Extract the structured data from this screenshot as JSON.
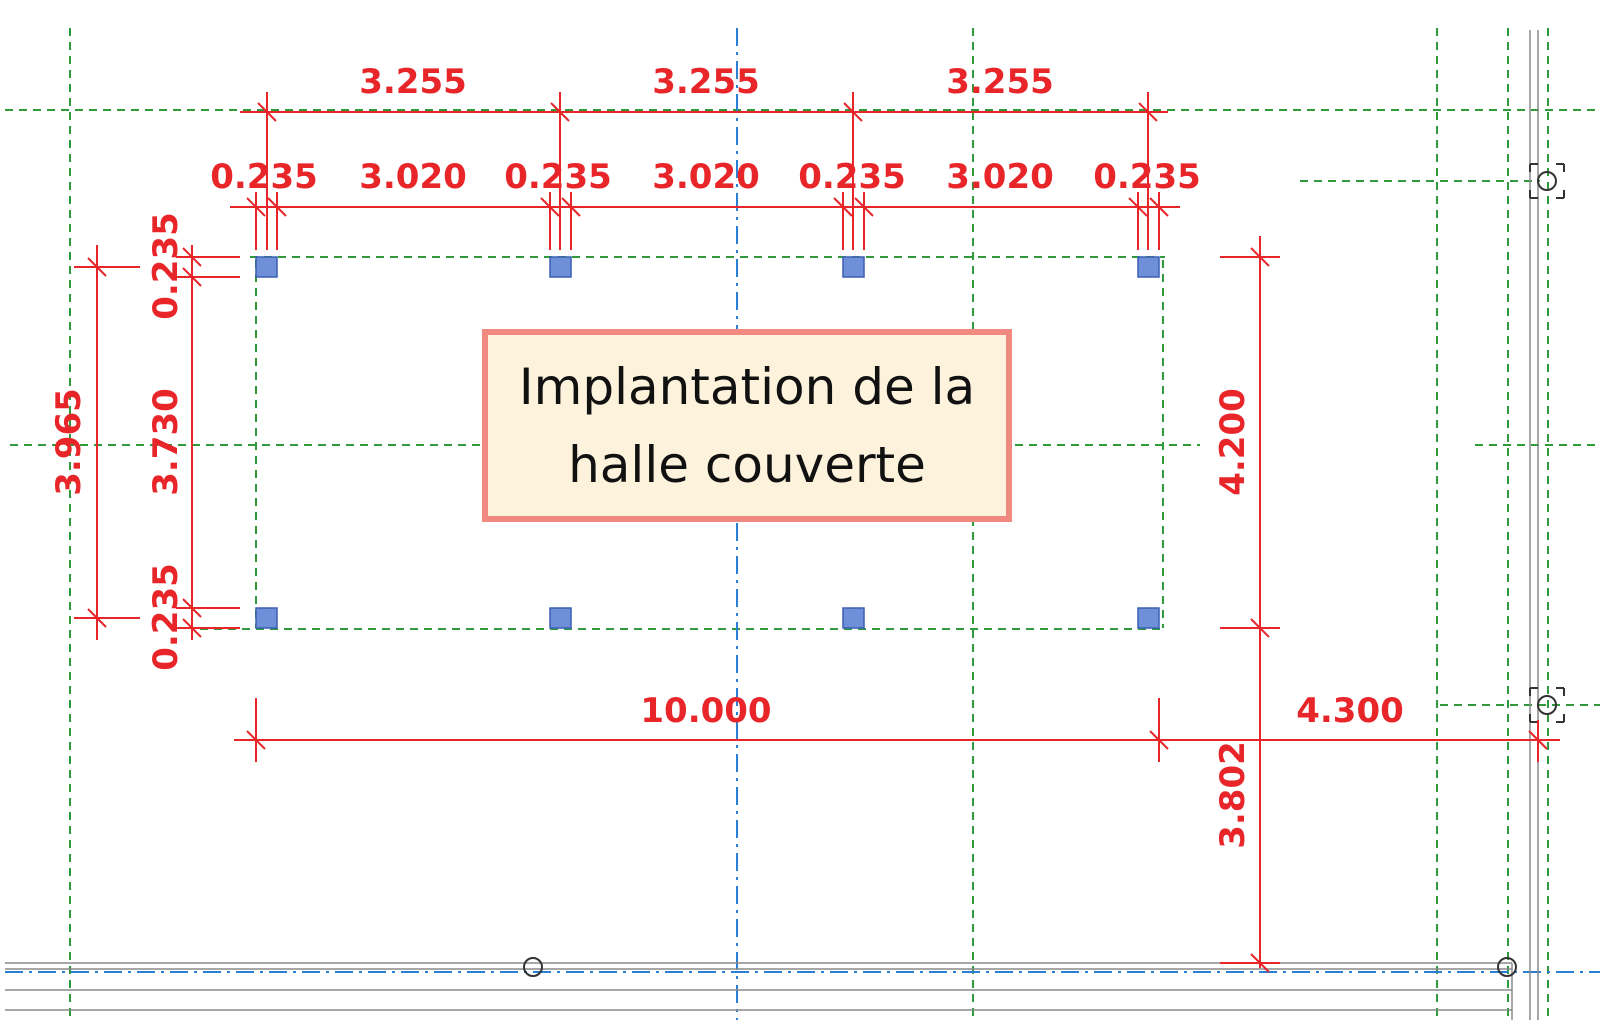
{
  "title": {
    "line1": "Implantation de la",
    "line2": "halle couverte"
  },
  "dimensions": {
    "top_spans": [
      "3.255",
      "3.255",
      "3.255"
    ],
    "top_details": [
      "0.235",
      "3.020",
      "0.235",
      "3.020",
      "0.235",
      "3.020",
      "0.235"
    ],
    "left_outer": "3.965",
    "left_parts": [
      "0.235",
      "3.730",
      "0.235"
    ],
    "right_upper": "4.200",
    "right_lower": "3.802",
    "bottom_total": "10.000",
    "bottom_right": "4.300"
  },
  "colors": {
    "dimension": "#e8262a",
    "grid": "#2e9a3a",
    "axis": "#2a7fd4",
    "post": "#6f8fd8",
    "title_bg": "#fdf3dc",
    "title_border": "#f08a80"
  }
}
